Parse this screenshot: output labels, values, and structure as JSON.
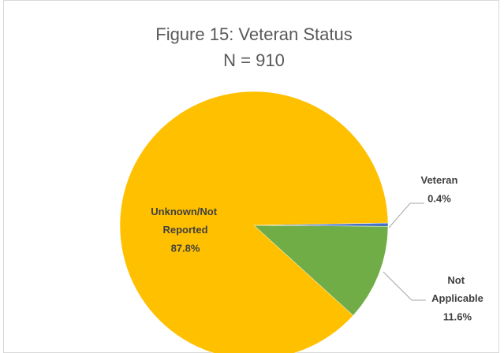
{
  "chart_data": {
    "type": "pie",
    "title": "Figure 15: Veteran Status",
    "subtitle": "N = 910",
    "categories": [
      "Veteran",
      "Not Applicable",
      "Unknown/Not Reported"
    ],
    "values": [
      0.4,
      11.6,
      87.8
    ],
    "value_labels": [
      "0.4%",
      "11.6%",
      "87.8%"
    ],
    "colors": [
      "#4472C4",
      "#70AD47",
      "#FFC000"
    ]
  }
}
